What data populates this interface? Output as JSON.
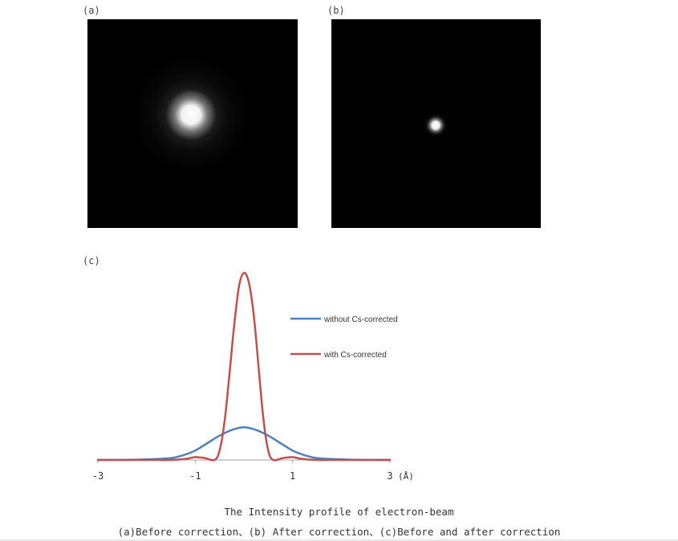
{
  "panels": {
    "a": {
      "label": "(a)"
    },
    "b": {
      "label": "(b)"
    },
    "c": {
      "label": "(c)"
    }
  },
  "caption": {
    "line1": "The Intensity profile of electron-beam",
    "line2": "(a)Before correction、(b) After correction、(c)Before and after correction"
  },
  "colors": {
    "without": "#4f81bd",
    "with": "#c0504d"
  },
  "chart_data": {
    "type": "line",
    "xlim": [
      -3,
      3
    ],
    "ylim": [
      0,
      1
    ],
    "x_ticks": [
      -3,
      -1,
      1,
      3
    ],
    "x_tick_labels": [
      "-3",
      "-1",
      "1",
      "3"
    ],
    "x_unit": "(Å)",
    "legend_position": "top-right",
    "grid": false,
    "series": [
      {
        "name": "without Cs-corrected",
        "color": "#4f81bd",
        "x": [
          -3,
          -2.5,
          -2,
          -1.5,
          -1.25,
          -1,
          -0.75,
          -0.5,
          -0.25,
          0,
          0.25,
          0.5,
          0.75,
          1,
          1.25,
          1.5,
          2,
          2.5,
          3
        ],
        "y": [
          0,
          0,
          0.003,
          0.01,
          0.025,
          0.05,
          0.09,
          0.13,
          0.16,
          0.175,
          0.16,
          0.13,
          0.09,
          0.05,
          0.025,
          0.01,
          0.003,
          0,
          0
        ]
      },
      {
        "name": "with Cs-corrected",
        "color": "#c0504d",
        "x": [
          -3,
          -2,
          -1.5,
          -1.2,
          -1,
          -0.8,
          -0.6,
          -0.5,
          -0.4,
          -0.3,
          -0.2,
          -0.1,
          0,
          0.1,
          0.2,
          0.3,
          0.4,
          0.5,
          0.6,
          0.8,
          1,
          1.2,
          1.5,
          2,
          3
        ],
        "y": [
          0,
          0,
          0,
          0.005,
          0.015,
          0.01,
          0.0,
          0.05,
          0.2,
          0.45,
          0.72,
          0.93,
          1.0,
          0.95,
          0.78,
          0.5,
          0.22,
          0.05,
          0.0,
          0.01,
          0.015,
          0.005,
          0,
          0,
          0
        ]
      }
    ]
  }
}
